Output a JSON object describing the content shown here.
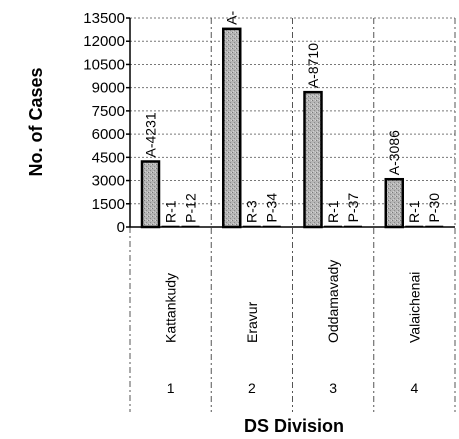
{
  "chart_data": {
    "type": "bar",
    "categories": [
      "Kattankudy",
      "Eravur",
      "Oddamavady",
      "Valaichenai"
    ],
    "category_numbers": [
      "1",
      "2",
      "3",
      "4"
    ],
    "series": [
      {
        "values": [
          4231,
          12800,
          8710,
          3086
        ],
        "labels": [
          "A-4231",
          "A-",
          "A-8710",
          "A-3086"
        ],
        "color": "#a9a9a9"
      },
      {
        "values": [
          1,
          3,
          1,
          1
        ],
        "labels": [
          "R-1",
          "R-3",
          "R-1",
          "R-1"
        ],
        "color": "#a9a9a9"
      },
      {
        "values": [
          12,
          34,
          37,
          30
        ],
        "labels": [
          "P-12",
          "P-34",
          "P-37",
          "P-30"
        ],
        "color": "#a9a9a9"
      }
    ],
    "xlabel": "DS Division",
    "ylabel": "No. of Cases",
    "ylim": [
      0,
      13500
    ],
    "yticks": [
      "0",
      "1500",
      "3000",
      "4500",
      "6000",
      "7500",
      "9000",
      "10500",
      "12000",
      "13500"
    ],
    "grid": true
  }
}
